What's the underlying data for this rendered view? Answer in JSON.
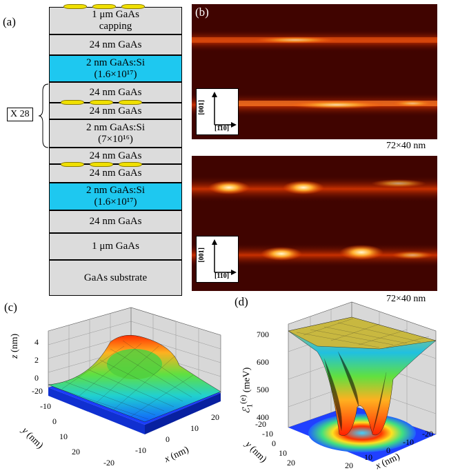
{
  "panels": {
    "a": "(a)",
    "b": "(b)",
    "c": "(c)",
    "d": "(d)"
  },
  "layers": [
    {
      "line1": "1 μm GaAs",
      "line2": "capping",
      "type": "gaas"
    },
    {
      "line1": "24 nm GaAs",
      "line2": "",
      "type": "gaas"
    },
    {
      "line1": "2 nm GaAs:Si",
      "line2": "(1.6×10¹⁷)",
      "type": "si"
    },
    {
      "line1": "24 nm GaAs",
      "line2": "",
      "type": "gaas"
    },
    {
      "line1": "24 nm GaAs",
      "line2": "",
      "type": "gaas"
    },
    {
      "line1": "2 nm GaAs:Si",
      "line2": "(7×10¹⁶)",
      "type": "gaas"
    },
    {
      "line1": "24 nm GaAs",
      "line2": "",
      "type": "gaas"
    },
    {
      "line1": "24 nm GaAs",
      "line2": "",
      "type": "gaas"
    },
    {
      "line1": "2 nm GaAs:Si",
      "line2": "(1.6×10¹⁷)",
      "type": "si"
    },
    {
      "line1": "24 nm GaAs",
      "line2": "",
      "type": "gaas"
    },
    {
      "line1": "1 μm GaAs",
      "line2": "",
      "type": "gaas"
    },
    {
      "line1": "GaAs substrate",
      "line2": "",
      "type": "gaas"
    }
  ],
  "repeat_label": "X 28",
  "stm": {
    "scale_top": "72×40 nm",
    "scale_bottom": "72×40 nm",
    "axis_001": "[001]",
    "axis_110_top": "[1̄10]",
    "axis_110_bottom": "[110]"
  },
  "plot_c": {
    "z_label": "z",
    "z_unit": "(nm)",
    "z_ticks": [
      "4",
      "2",
      "0"
    ],
    "y_label": "y",
    "y_unit": "(nm)",
    "y_ticks": [
      "-20",
      "-10",
      "0",
      "10",
      "20"
    ],
    "x_label": "x",
    "x_unit": "(nm)",
    "x_ticks": [
      "-20",
      "-10",
      "0",
      "10",
      "20"
    ]
  },
  "plot_d": {
    "e_label": "ℰ",
    "e_sub": "1",
    "e_sup": "(e)",
    "e_unit": "(meV)",
    "e_ticks": [
      "700",
      "600",
      "500",
      "400"
    ],
    "y_label": "y",
    "y_unit": "(nm)",
    "y_ticks": [
      "-20",
      "-10",
      "0",
      "10",
      "20"
    ],
    "x_label": "x",
    "x_unit": "(nm)",
    "x_ticks": [
      "20",
      "10",
      "0",
      "-10",
      "-20"
    ]
  }
}
